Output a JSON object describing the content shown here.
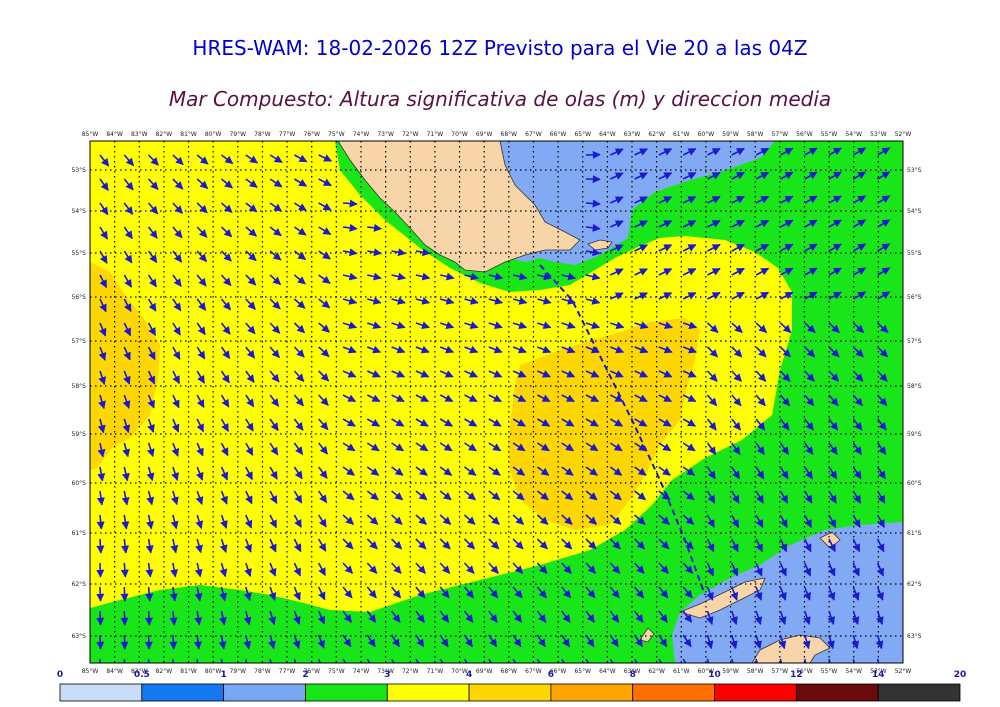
{
  "header": {
    "title": "HRES-WAM: 18-02-2026 12Z Previsto para el Vie 20 a las 04Z",
    "subtitle": "Mar Compuesto: Altura significativa de olas (m) y direccion media"
  },
  "map": {
    "lon_labels": [
      "85°W",
      "84°W",
      "83°W",
      "82°W",
      "81°W",
      "80°W",
      "79°W",
      "78°W",
      "77°W",
      "76°W",
      "75°W",
      "74°W",
      "73°W",
      "72°W",
      "71°W",
      "70°W",
      "69°W",
      "68°W",
      "67°W",
      "66°W",
      "65°W",
      "64°W",
      "63°W",
      "62°W",
      "61°W",
      "60°W",
      "59°W",
      "58°W",
      "57°W",
      "56°W",
      "55°W",
      "54°W",
      "53°W",
      "52°W"
    ],
    "lat_labels": [
      "53°S",
      "54°S",
      "55°S",
      "56°S",
      "57°S",
      "58°S",
      "59°S",
      "60°S",
      "61°S",
      "62°S",
      "63°S"
    ],
    "colors": {
      "0.5-1": "#6c9ff5",
      "1-2": "#82aaf4",
      "2-3": "#19e619",
      "3-4": "#ffff00",
      "4-5": "#ffd700",
      "land": "#f8d5a8",
      "arrow": "#1a1ad0"
    }
  },
  "colorbar": {
    "labels": [
      "0",
      "0.5",
      "1",
      "2",
      "3",
      "4",
      "6",
      "8",
      "10",
      "12",
      "14",
      "20"
    ],
    "colors": [
      "#c8ddf7",
      "#1478f0",
      "#78a8f2",
      "#19e619",
      "#ffff00",
      "#ffd700",
      "#ffa500",
      "#ff7000",
      "#ff0000",
      "#6a0a0a",
      "#333333"
    ]
  }
}
